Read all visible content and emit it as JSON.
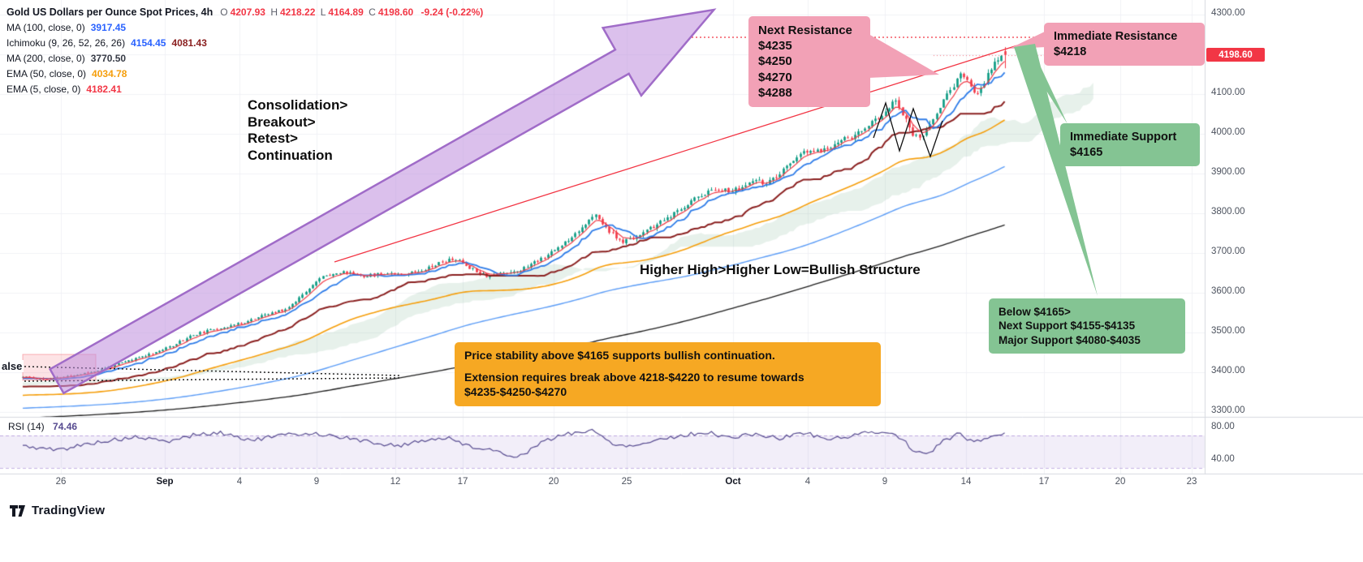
{
  "colors": {
    "up": "#089981",
    "down": "#f23645",
    "ma100": "#5b9cf6",
    "ma200": "#1c1c1c",
    "ema50": "#f59e0b",
    "ema5": "#ef3b47",
    "tenkan": "#2e7ce8",
    "kijun": "#8a1f1f",
    "cloud": "rgba(96,158,118,0.15)",
    "rsi": "#574b90",
    "rsi_band": "rgba(126,87,194,0.10)",
    "grid": "#f0f2f6",
    "divider": "#d6d9df",
    "badge_bg": "#f23645",
    "annotation_pink": "#f2a1b6",
    "annotation_green": "#84c493",
    "annotation_orange": "#f6a823",
    "arrow_fill": "rgba(190,140,220,0.55)",
    "arrow_stroke": "#a06cc8"
  },
  "legend": {
    "title": "Gold US Dollars per Ounce Spot Prices, 4h",
    "ohlc": {
      "o_label": "O",
      "o_value": "4207.93",
      "h_label": "H",
      "h_value": "4218.22",
      "l_label": "L",
      "l_value": "4164.89",
      "c_label": "C",
      "c_value": "4198.60",
      "change": "-9.24 (-0.22%)"
    },
    "indicators": [
      {
        "label": "MA (100, close, 0)",
        "value1": "3917.45"
      },
      {
        "label": "Ichimoku (9, 26, 52, 26, 26)",
        "value1": "4154.45",
        "value2": "4081.43"
      },
      {
        "label": "MA (200, close, 0)",
        "value1": "3770.50"
      },
      {
        "label": "EMA (50, close, 0)",
        "value1": "4034.78"
      },
      {
        "label": "EMA (5, close, 0)",
        "value1": "4182.41"
      }
    ]
  },
  "rsi_legend": {
    "label": "RSI (14)",
    "value": "74.46"
  },
  "annotations": {
    "consolidation": {
      "lines": [
        "Consolidation>",
        "Breakout>",
        "Retest>",
        "Continuation"
      ]
    },
    "structure_note": "Higher High>Higher Low=Bullish Structure",
    "next_resistance": {
      "title": "Next Resistance",
      "lines": [
        "$4235",
        "$4250",
        "$4270",
        "$4288"
      ]
    },
    "immediate_resistance": {
      "title": "Immediate Resistance",
      "line": "$4218"
    },
    "immediate_support": {
      "title": "Immediate Support",
      "line": "$4165"
    },
    "below_support": {
      "lines": [
        "Below $4165>",
        "Next Support  $4155-$4135",
        "Major Support $4080-$4035"
      ]
    },
    "orange_note": {
      "p1": "Price stability above $4165 supports bullish continuation.",
      "p2": "Extension requires break above 4218-$4220 to resume towards $4235-$4250-$4270"
    },
    "clipped_left_label": "alse"
  },
  "price_axis": {
    "labels": [
      "4300.00",
      "4100.00",
      "4000.00",
      "3900.00",
      "3800.00",
      "3700.00",
      "3600.00",
      "3500.00",
      "3400.00",
      "3300.00"
    ],
    "badge": "4198.60"
  },
  "rsi_axis": {
    "labels": [
      "80.00",
      "40.00"
    ]
  },
  "time_axis": {
    "labels": [
      "26",
      "Sep",
      "4",
      "9",
      "12",
      "17",
      "20",
      "25",
      "Oct",
      "4",
      "9",
      "14",
      "17",
      "20",
      "23"
    ]
  },
  "footer": {
    "brand": "TradingView"
  },
  "chart_data": {
    "type": "candlestick",
    "title": "Gold US Dollars per Ounce Spot Prices",
    "timeframe": "4h",
    "ohlc_current": {
      "open": 4207.93,
      "high": 4218.22,
      "low": 4164.89,
      "close": 4198.6,
      "change": -9.24,
      "change_pct": -0.22
    },
    "ylim": [
      3300,
      4300
    ],
    "x_range_labels": [
      "Aug 26",
      "Oct 23"
    ],
    "grid": true,
    "price_path": [
      [
        28,
        3388
      ],
      [
        55,
        3382
      ],
      [
        85,
        3390
      ],
      [
        115,
        3402
      ],
      [
        145,
        3420
      ],
      [
        175,
        3440
      ],
      [
        205,
        3460
      ],
      [
        235,
        3492
      ],
      [
        265,
        3509
      ],
      [
        295,
        3522
      ],
      [
        325,
        3543
      ],
      [
        355,
        3562
      ],
      [
        380,
        3612
      ],
      [
        400,
        3645
      ],
      [
        425,
        3652
      ],
      [
        450,
        3642
      ],
      [
        475,
        3650
      ],
      [
        500,
        3648
      ],
      [
        520,
        3658
      ],
      [
        542,
        3676
      ],
      [
        560,
        3686
      ],
      [
        580,
        3662
      ],
      [
        600,
        3643
      ],
      [
        620,
        3650
      ],
      [
        642,
        3658
      ],
      [
        662,
        3682
      ],
      [
        682,
        3705
      ],
      [
        702,
        3738
      ],
      [
        720,
        3772
      ],
      [
        733,
        3795
      ],
      [
        748,
        3760
      ],
      [
        765,
        3726
      ],
      [
        782,
        3740
      ],
      [
        800,
        3760
      ],
      [
        820,
        3785
      ],
      [
        838,
        3808
      ],
      [
        855,
        3838
      ],
      [
        870,
        3852
      ],
      [
        885,
        3862
      ],
      [
        900,
        3855
      ],
      [
        915,
        3866
      ],
      [
        930,
        3882
      ],
      [
        945,
        3875
      ],
      [
        960,
        3896
      ],
      [
        975,
        3932
      ],
      [
        990,
        3952
      ],
      [
        1005,
        3956
      ],
      [
        1020,
        3962
      ],
      [
        1035,
        3986
      ],
      [
        1050,
        3992
      ],
      [
        1065,
        4012
      ],
      [
        1080,
        4038
      ],
      [
        1093,
        4062
      ],
      [
        1103,
        4086
      ],
      [
        1113,
        4046
      ],
      [
        1123,
        4001
      ],
      [
        1133,
        3986
      ],
      [
        1143,
        4012
      ],
      [
        1153,
        4052
      ],
      [
        1163,
        4092
      ],
      [
        1175,
        4122
      ],
      [
        1185,
        4152
      ],
      [
        1193,
        4132
      ],
      [
        1203,
        4092
      ],
      [
        1213,
        4132
      ],
      [
        1222,
        4172
      ],
      [
        1231,
        4192
      ],
      [
        1240,
        4198.6
      ]
    ],
    "indicators": {
      "ma100_period": 100,
      "ma100_last": 3917.45,
      "ma200_period": 200,
      "ma200_last": 3770.5,
      "ema50_period": 50,
      "ema50_last": 4034.78,
      "ema5_period": 5,
      "ema5_last": 4182.41,
      "ichimoku_params": [
        9,
        26,
        52,
        26,
        26
      ],
      "ichimoku_tenkan_last": 4154.45,
      "ichimoku_kijun_last": 4081.43,
      "rsi_period": 14,
      "rsi_last": 74.46
    },
    "rsi_path": [
      [
        28,
        57
      ],
      [
        70,
        52
      ],
      [
        120,
        62
      ],
      [
        170,
        68
      ],
      [
        205,
        62
      ],
      [
        240,
        71
      ],
      [
        275,
        73
      ],
      [
        310,
        64
      ],
      [
        345,
        70
      ],
      [
        385,
        73
      ],
      [
        420,
        68
      ],
      [
        455,
        62
      ],
      [
        490,
        57
      ],
      [
        520,
        64
      ],
      [
        550,
        67
      ],
      [
        580,
        57
      ],
      [
        610,
        50
      ],
      [
        640,
        44
      ],
      [
        665,
        60
      ],
      [
        695,
        72
      ],
      [
        730,
        76
      ],
      [
        755,
        60
      ],
      [
        780,
        57
      ],
      [
        810,
        65
      ],
      [
        840,
        70
      ],
      [
        870,
        74
      ],
      [
        900,
        67
      ],
      [
        930,
        72
      ],
      [
        960,
        66
      ],
      [
        990,
        74
      ],
      [
        1020,
        65
      ],
      [
        1050,
        70
      ],
      [
        1080,
        75
      ],
      [
        1105,
        71
      ],
      [
        1125,
        52
      ],
      [
        1140,
        45
      ],
      [
        1160,
        62
      ],
      [
        1180,
        72
      ],
      [
        1200,
        62
      ],
      [
        1220,
        68
      ],
      [
        1240,
        74.46
      ]
    ],
    "levels": {
      "immediate_resistance": 4218,
      "next_resistance": [
        4235,
        4250,
        4270,
        4288
      ],
      "immediate_support": 4165,
      "next_support": [
        4155,
        4135
      ],
      "major_support": [
        4080,
        4035
      ]
    }
  }
}
